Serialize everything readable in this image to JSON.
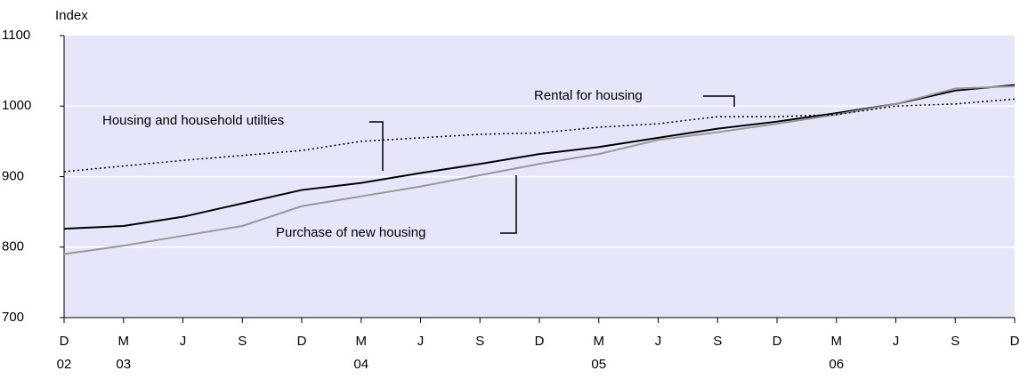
{
  "chart_data": {
    "type": "line",
    "y_axis_label": "Index",
    "categories": [
      "D",
      "M",
      "J",
      "S",
      "D",
      "M",
      "J",
      "S",
      "D",
      "M",
      "J",
      "S",
      "D",
      "M",
      "J",
      "S",
      "D"
    ],
    "year_labels": [
      "02",
      "03",
      null,
      null,
      null,
      "04",
      null,
      null,
      null,
      "05",
      null,
      null,
      null,
      "06",
      null,
      null,
      null
    ],
    "series": [
      {
        "name": "Housing and household utilties",
        "color": "#000000",
        "style": "solid",
        "values": [
          826,
          830,
          843,
          862,
          881,
          891,
          905,
          918,
          932,
          942,
          955,
          968,
          978,
          990,
          1003,
          1022,
          1030
        ]
      },
      {
        "name": "Purchase of new housing",
        "color": "#999999",
        "style": "solid",
        "values": [
          790,
          802,
          816,
          830,
          858,
          872,
          886,
          902,
          918,
          932,
          952,
          963,
          975,
          988,
          1003,
          1025,
          1028
        ]
      },
      {
        "name": "Rental for housing",
        "color": "#000000",
        "style": "dotted",
        "values": [
          907,
          915,
          923,
          930,
          937,
          950,
          955,
          960,
          962,
          970,
          975,
          985,
          985,
          988,
          1000,
          1003,
          1010
        ]
      }
    ],
    "ylim": [
      700,
      1100
    ],
    "yticks": [
      700,
      800,
      900,
      1000,
      1100
    ],
    "grid": true,
    "background": "#e6e6fa"
  }
}
